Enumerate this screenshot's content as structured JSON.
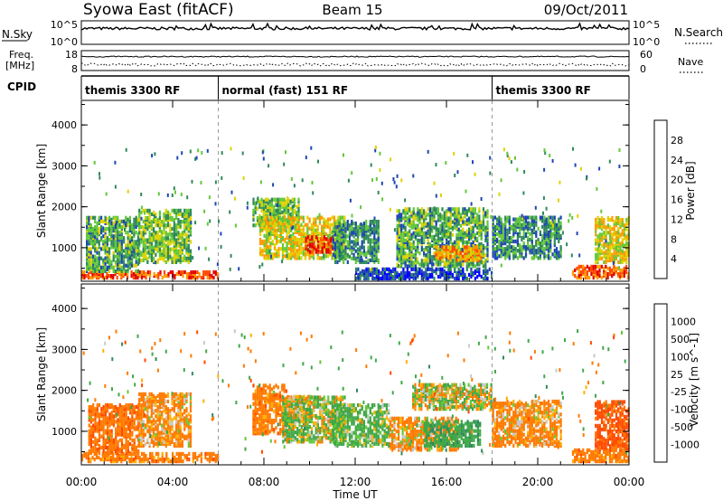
{
  "header": {
    "title": "Syowa East (fitACF)",
    "beam": "Beam 15",
    "date": "09/Oct/2011"
  },
  "summary_panel": {
    "nsky_label": "N.Sky",
    "nsky_ticks": [
      "10^5",
      "10^0"
    ],
    "nsearch_label": "N.Search",
    "nsearch_ticks": [
      "10^5",
      "10^0"
    ],
    "freq_label_1": "Freq.",
    "freq_label_2": "[MHz]",
    "freq_ticks": [
      "18",
      "8"
    ],
    "nave_label": "Nave",
    "nave_ticks": [
      "60",
      "0"
    ],
    "cpid_label": "CPID",
    "cpid_segments": [
      {
        "label": "themis 3300 RF",
        "start": 0,
        "end": 6
      },
      {
        "label": "normal (fast) 151 RF",
        "start": 6,
        "end": 18
      },
      {
        "label": "themis 3300 RF",
        "start": 18,
        "end": 24
      }
    ]
  },
  "chart_data": [
    {
      "type": "heatmap",
      "name": "power",
      "ylabel": "Slant Range [km]",
      "xlabel": "Time UT",
      "xlim": [
        0,
        24
      ],
      "ylim": [
        180,
        4600
      ],
      "y_ticks": [
        "1000",
        "2000",
        "3000",
        "4000"
      ],
      "x_ticks": [
        "00:00",
        "04:00",
        "08:00",
        "12:00",
        "16:00",
        "20:00",
        "00:00"
      ],
      "colorbar_label": "Power [dB]",
      "colorbar_ticks": [
        "4",
        "8",
        "12",
        "16",
        "20",
        "24",
        "28"
      ],
      "colors": [
        "#0000ff",
        "#1e46b4",
        "#2f8a5a",
        "#63c838",
        "#e0d200",
        "#ff9a00",
        "#ff4a00",
        "#e00000"
      ],
      "blobs": [
        {
          "t": [
            0.0,
            6.0
          ],
          "r": [
            220,
            380
          ],
          "v": 26
        },
        {
          "t": [
            0.2,
            2.5
          ],
          "r": [
            380,
            1700
          ],
          "v": 12
        },
        {
          "t": [
            2.5,
            4.8
          ],
          "r": [
            600,
            1900
          ],
          "v": 14
        },
        {
          "t": [
            7.5,
            9.5
          ],
          "r": [
            1500,
            2150
          ],
          "v": 14
        },
        {
          "t": [
            7.8,
            11.5
          ],
          "r": [
            700,
            1700
          ],
          "v": 18
        },
        {
          "t": [
            9.8,
            11.0
          ],
          "r": [
            850,
            1250
          ],
          "v": 28
        },
        {
          "t": [
            11.0,
            13.0
          ],
          "r": [
            600,
            1600
          ],
          "v": 10
        },
        {
          "t": [
            13.8,
            17.8
          ],
          "r": [
            500,
            1900
          ],
          "v": 12
        },
        {
          "t": [
            15.5,
            17.5
          ],
          "r": [
            650,
            1000
          ],
          "v": 22
        },
        {
          "t": [
            18.0,
            21.0
          ],
          "r": [
            700,
            1700
          ],
          "v": 10
        },
        {
          "t": [
            21.5,
            24.0
          ],
          "r": [
            220,
            500
          ],
          "v": 26
        },
        {
          "t": [
            22.5,
            24.0
          ],
          "r": [
            600,
            1700
          ],
          "v": 18
        },
        {
          "t": [
            12.0,
            18.0
          ],
          "r": [
            200,
            450
          ],
          "v": 6
        }
      ]
    },
    {
      "type": "heatmap",
      "name": "velocity",
      "ylabel": "Slant Range [km]",
      "xlabel": "Time UT",
      "xlim": [
        0,
        24
      ],
      "ylim": [
        180,
        4600
      ],
      "y_ticks": [
        "1000",
        "2000",
        "3000",
        "4000"
      ],
      "x_ticks": [
        "00:00",
        "04:00",
        "08:00",
        "12:00",
        "16:00",
        "20:00",
        "00:00"
      ],
      "colorbar_label": "Velocity [m s^-1]",
      "colorbar_ticks": [
        "1000",
        "500",
        "100",
        "25",
        "-25",
        "-100",
        "-500",
        "-1000"
      ],
      "colors": [
        "#2050b8",
        "#2f8a5a",
        "#3fa848",
        "#63c838",
        "#c8c8c8",
        "#ffb000",
        "#ff7a00",
        "#ff4a00",
        "#e00000"
      ],
      "blobs": [
        {
          "t": [
            0.0,
            6.0
          ],
          "r": [
            220,
            420
          ],
          "v": -300
        },
        {
          "t": [
            0.3,
            2.5
          ],
          "r": [
            420,
            1600
          ],
          "v": -400
        },
        {
          "t": [
            2.5,
            4.8
          ],
          "r": [
            600,
            1900
          ],
          "v": -200
        },
        {
          "t": [
            7.5,
            9.0
          ],
          "r": [
            900,
            2100
          ],
          "v": -300
        },
        {
          "t": [
            8.8,
            11.5
          ],
          "r": [
            700,
            1800
          ],
          "v": 80
        },
        {
          "t": [
            9.0,
            10.0
          ],
          "r": [
            1300,
            1800
          ],
          "v": 0
        },
        {
          "t": [
            11.0,
            13.5
          ],
          "r": [
            600,
            1600
          ],
          "v": 150
        },
        {
          "t": [
            13.5,
            16.5
          ],
          "r": [
            500,
            1300
          ],
          "v": -150
        },
        {
          "t": [
            15.0,
            17.5
          ],
          "r": [
            600,
            1200
          ],
          "v": 400
        },
        {
          "t": [
            14.5,
            18.0
          ],
          "r": [
            1500,
            2100
          ],
          "v": 0
        },
        {
          "t": [
            18.0,
            21.0
          ],
          "r": [
            600,
            1700
          ],
          "v": -200
        },
        {
          "t": [
            21.5,
            24.0
          ],
          "r": [
            220,
            500
          ],
          "v": -300
        },
        {
          "t": [
            22.5,
            24.0
          ],
          "r": [
            500,
            1700
          ],
          "v": -600
        }
      ]
    }
  ]
}
